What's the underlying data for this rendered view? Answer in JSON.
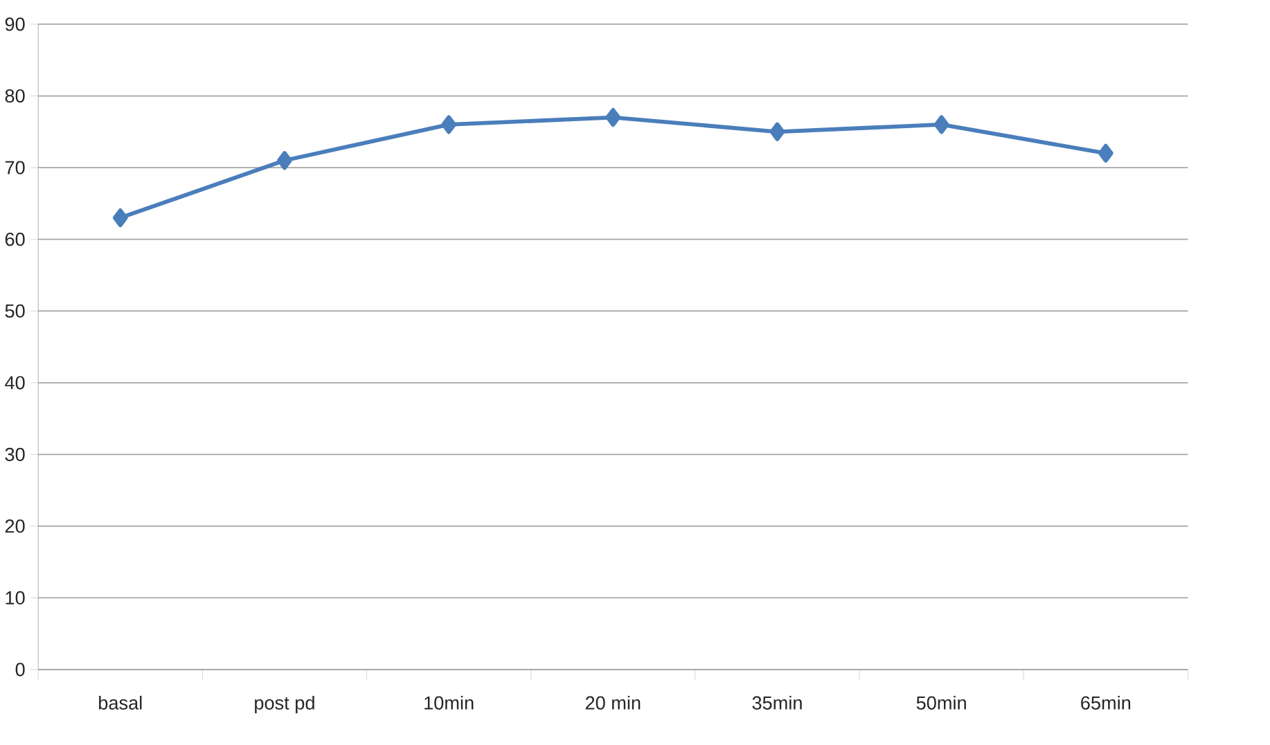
{
  "chart_data": {
    "type": "line",
    "categories": [
      "basal",
      "post pd",
      "10min",
      "20 min",
      "35min",
      "50min",
      "65min"
    ],
    "series": [
      {
        "color": "#4a7ebb",
        "values": [
          63,
          71,
          76,
          77,
          75,
          76,
          72
        ]
      }
    ],
    "ylim": [
      0,
      90
    ],
    "yticks": [
      0,
      10,
      20,
      30,
      40,
      50,
      60,
      70,
      80,
      90
    ],
    "grid": "y",
    "marker": "diamond",
    "line_style": "solid"
  }
}
